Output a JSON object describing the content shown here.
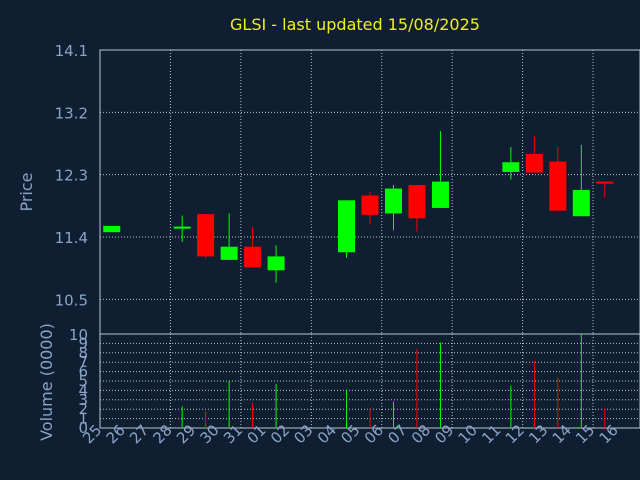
{
  "chart_data": {
    "type": "candlestick",
    "title": "GLSI - last updated 15/08/2025",
    "xlabel": "Day",
    "ylabel_price": "Price",
    "ylabel_volume": "Volume (0000)",
    "price_ticks": [
      "14.1",
      "13.2",
      "12.3",
      "11.4",
      "10.5",
      "10"
    ],
    "price_tick_values": [
      14.1,
      13.2,
      12.3,
      11.4,
      10.5,
      10.0
    ],
    "price_range": [
      10.0,
      14.1
    ],
    "volume_ticks": [
      "0",
      "1",
      "2",
      "3",
      "4",
      "5",
      "6",
      "7",
      "8",
      "9"
    ],
    "volume_range": [
      0,
      10
    ],
    "x_labels": [
      "25",
      "26",
      "27",
      "28",
      "29",
      "30",
      "31",
      "01",
      "02",
      "03",
      "04",
      "05",
      "06",
      "07",
      "08",
      "09",
      "10",
      "11",
      "12",
      "13",
      "14",
      "15",
      "16"
    ],
    "grid": true,
    "colors": {
      "background": "#0f1e30",
      "title": "#f0f020",
      "axis_text": "#8aa4c8",
      "up": "#00ff00",
      "down": "#ff0000",
      "grid": "#b8c4d4"
    },
    "candles": [
      {
        "day": "25",
        "open": 11.47,
        "high": 11.56,
        "low": 11.47,
        "close": 11.56
      },
      {
        "day": "28",
        "open": 11.53,
        "high": 11.71,
        "low": 11.33,
        "close": 11.55
      },
      {
        "day": "29",
        "open": 11.73,
        "high": 11.73,
        "low": 11.09,
        "close": 11.12
      },
      {
        "day": "30",
        "open": 11.07,
        "high": 11.74,
        "low": 11.07,
        "close": 11.26
      },
      {
        "day": "31",
        "open": 11.26,
        "high": 11.55,
        "low": 10.96,
        "close": 10.96
      },
      {
        "day": "01",
        "open": 10.92,
        "high": 11.28,
        "low": 10.74,
        "close": 11.12
      },
      {
        "day": "04",
        "open": 11.18,
        "high": 11.93,
        "low": 11.1,
        "close": 11.93
      },
      {
        "day": "05",
        "open": 12.0,
        "high": 12.05,
        "low": 11.58,
        "close": 11.72
      },
      {
        "day": "06",
        "open": 11.74,
        "high": 12.15,
        "low": 11.5,
        "close": 12.1
      },
      {
        "day": "07",
        "open": 12.15,
        "high": 12.15,
        "low": 11.48,
        "close": 11.67
      },
      {
        "day": "08",
        "open": 11.82,
        "high": 12.93,
        "low": 11.82,
        "close": 12.2
      },
      {
        "day": "11",
        "open": 12.34,
        "high": 12.7,
        "low": 12.23,
        "close": 12.48
      },
      {
        "day": "12",
        "open": 12.6,
        "high": 12.86,
        "low": 12.33,
        "close": 12.33
      },
      {
        "day": "13",
        "open": 12.49,
        "high": 12.7,
        "low": 11.78,
        "close": 11.78
      },
      {
        "day": "14",
        "open": 11.7,
        "high": 12.73,
        "low": 11.7,
        "close": 12.08
      },
      {
        "day": "15",
        "open": 12.2,
        "high": 12.2,
        "low": 11.97,
        "close": 12.17
      }
    ],
    "volumes": [
      {
        "day": "28",
        "value": 2.3,
        "dir": "up"
      },
      {
        "day": "29",
        "value": 1.8,
        "dir": "down"
      },
      {
        "day": "30",
        "value": 5.0,
        "dir": "up"
      },
      {
        "day": "31",
        "value": 2.7,
        "dir": "down"
      },
      {
        "day": "01",
        "value": 4.7,
        "dir": "up"
      },
      {
        "day": "04",
        "value": 4.1,
        "dir": "up"
      },
      {
        "day": "05",
        "value": 2.1,
        "dir": "down"
      },
      {
        "day": "06",
        "value": 2.8,
        "dir": "up"
      },
      {
        "day": "07",
        "value": 8.4,
        "dir": "down"
      },
      {
        "day": "08",
        "value": 9.1,
        "dir": "up"
      },
      {
        "day": "11",
        "value": 4.5,
        "dir": "up"
      },
      {
        "day": "12",
        "value": 7.1,
        "dir": "down"
      },
      {
        "day": "13",
        "value": 5.4,
        "dir": "down"
      },
      {
        "day": "14",
        "value": 10.0,
        "dir": "up"
      },
      {
        "day": "15",
        "value": 2.1,
        "dir": "down"
      }
    ]
  }
}
